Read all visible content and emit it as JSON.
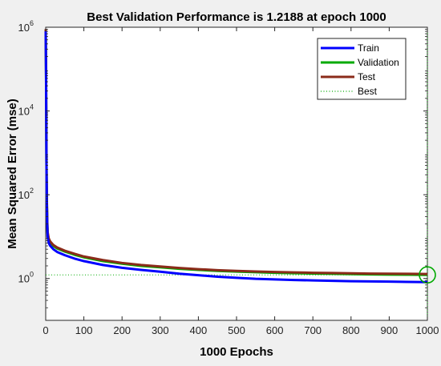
{
  "chart_data": {
    "type": "line",
    "title": "Best Validation Performance is 1.2188 at epoch 1000",
    "xlabel": "1000 Epochs",
    "ylabel": "Mean Squared Error  (mse)",
    "xlim": [
      0,
      1000
    ],
    "ylim": [
      0.1,
      1000000
    ],
    "yscale": "log",
    "grid": false,
    "legend_position": "top-right",
    "xticks": [
      "0",
      "100",
      "200",
      "300",
      "400",
      "500",
      "600",
      "700",
      "800",
      "900",
      "1000"
    ],
    "yticks": [
      {
        "base": "10",
        "exp": "0",
        "value": 1
      },
      {
        "base": "10",
        "exp": "2",
        "value": 100
      },
      {
        "base": "10",
        "exp": "4",
        "value": 10000
      },
      {
        "base": "10",
        "exp": "6",
        "value": 1000000
      }
    ],
    "series": [
      {
        "name": "Train",
        "color": "#0000ff",
        "x": [
          0,
          1,
          2,
          3,
          4,
          5,
          8,
          12,
          20,
          30,
          50,
          75,
          100,
          150,
          200,
          250,
          300,
          350,
          400,
          450,
          500,
          550,
          600,
          650,
          700,
          750,
          800,
          850,
          900,
          950,
          1000
        ],
        "y": [
          800000,
          50000,
          500,
          60,
          20,
          10,
          7,
          6,
          5,
          4.3,
          3.6,
          3.0,
          2.6,
          2.1,
          1.8,
          1.6,
          1.45,
          1.3,
          1.2,
          1.1,
          1.04,
          0.98,
          0.95,
          0.92,
          0.9,
          0.88,
          0.86,
          0.85,
          0.84,
          0.83,
          0.82
        ]
      },
      {
        "name": "Validation",
        "color": "#00aa00",
        "x": [
          0,
          1,
          2,
          3,
          4,
          5,
          8,
          12,
          20,
          30,
          50,
          75,
          100,
          150,
          200,
          250,
          300,
          350,
          400,
          450,
          500,
          550,
          600,
          650,
          700,
          750,
          800,
          850,
          900,
          950,
          1000
        ],
        "y": [
          850000,
          60000,
          600,
          70,
          24,
          12,
          8.5,
          7.2,
          6.0,
          5.2,
          4.4,
          3.7,
          3.2,
          2.6,
          2.25,
          2.0,
          1.85,
          1.7,
          1.6,
          1.52,
          1.46,
          1.41,
          1.37,
          1.34,
          1.31,
          1.29,
          1.27,
          1.25,
          1.24,
          1.23,
          1.2188
        ]
      },
      {
        "name": "Test",
        "color": "#8b2b1a",
        "x": [
          0,
          1,
          2,
          3,
          4,
          5,
          8,
          12,
          20,
          30,
          50,
          75,
          100,
          150,
          200,
          250,
          300,
          350,
          400,
          450,
          500,
          550,
          600,
          650,
          700,
          750,
          800,
          850,
          900,
          950,
          1000
        ],
        "y": [
          900000,
          70000,
          700,
          80,
          26,
          13,
          9.0,
          7.6,
          6.3,
          5.5,
          4.6,
          3.9,
          3.35,
          2.75,
          2.35,
          2.1,
          1.93,
          1.78,
          1.67,
          1.58,
          1.52,
          1.47,
          1.43,
          1.4,
          1.37,
          1.35,
          1.33,
          1.31,
          1.3,
          1.29,
          1.28
        ]
      }
    ],
    "best": {
      "name": "Best",
      "epoch": 1000,
      "value": 1.2188,
      "color": "#00aa00"
    }
  }
}
